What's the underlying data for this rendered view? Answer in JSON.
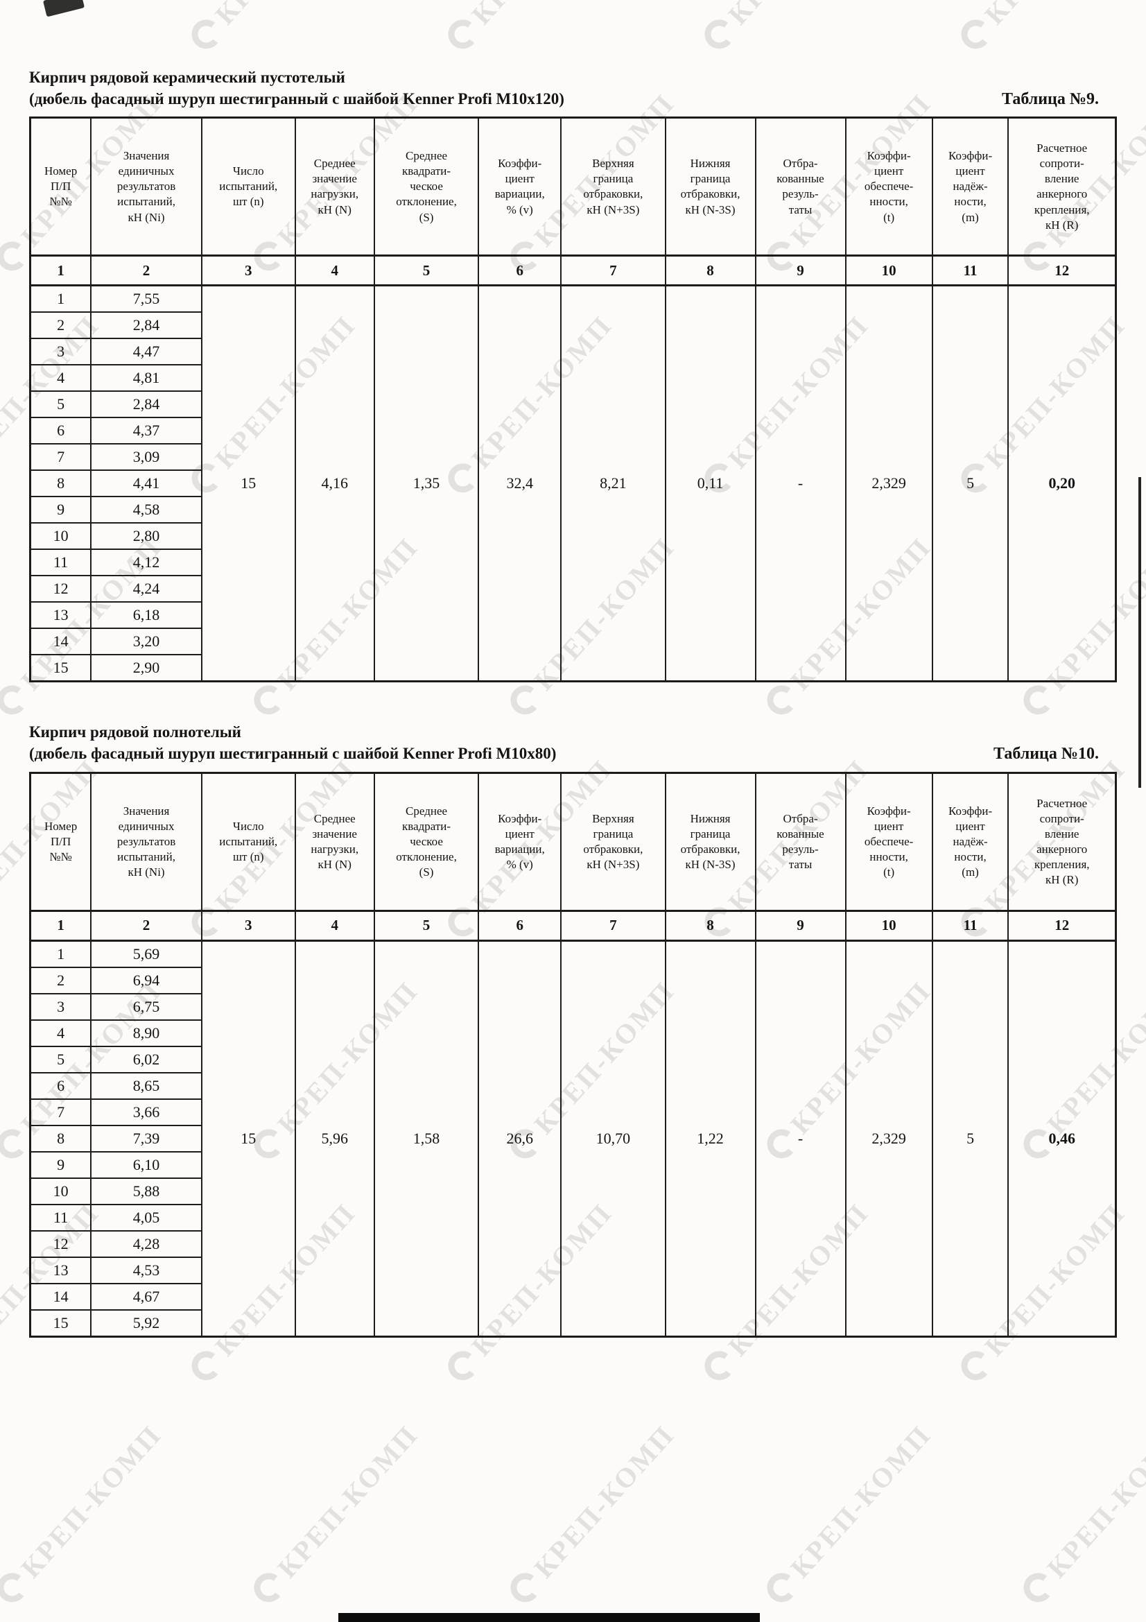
{
  "page": {
    "watermark_text": "КРЕП-КОМП"
  },
  "columns": {
    "headers": [
      "Номер\nП/П\n№№",
      "Значения\nединичных\nрезультатов\nиспытаний,\nкН (Ni)",
      "Число\nиспытаний,\nшт (n)",
      "Среднее\nзначение\nнагрузки,\nкН (N)",
      "Среднее\nквадрати-\nческое\nотклонение,\n(S)",
      "Коэффи-\nциент\nвариации,\n% (v)",
      "Верхняя\nграница\nотбраковки,\nкН (N+3S)",
      "Нижняя\nграница\nотбраковки,\nкН (N-3S)",
      "Отбра-\nкованные\nрезуль-\nтаты",
      "Коэффи-\nциент\nобеспече-\nнности,\n(t)",
      "Коэффи-\nциент\nнадёж-\nности,\n(m)",
      "Расчетное\nсопроти-\nвление\nанкерного\nкрепления,\nкН (R)"
    ],
    "numbers": [
      "1",
      "2",
      "3",
      "4",
      "5",
      "6",
      "7",
      "8",
      "9",
      "10",
      "11",
      "12"
    ]
  },
  "tables": [
    {
      "title": "Кирпич рядовой керамический пустотелый",
      "subtitle": "(дюбель фасадный шуруп шестигранный с шайбой Kenner Profi M10x120)",
      "label": "Таблица №9.",
      "row_numbers": [
        "1",
        "2",
        "3",
        "4",
        "5",
        "6",
        "7",
        "8",
        "9",
        "10",
        "11",
        "12",
        "13",
        "14",
        "15"
      ],
      "values": [
        "7,55",
        "2,84",
        "4,47",
        "4,81",
        "2,84",
        "4,37",
        "3,09",
        "4,41",
        "4,58",
        "2,80",
        "4,12",
        "4,24",
        "6,18",
        "3,20",
        "2,90"
      ],
      "merged": [
        "15",
        "4,16",
        "1,35",
        "32,4",
        "8,21",
        "0,11",
        "-",
        "2,329",
        "5",
        "0,20"
      ]
    },
    {
      "title": "Кирпич рядовой полнотелый",
      "subtitle": "(дюбель фасадный шуруп шестигранный с шайбой Kenner Profi M10x80)",
      "label": "Таблица №10.",
      "row_numbers": [
        "1",
        "2",
        "3",
        "4",
        "5",
        "6",
        "7",
        "8",
        "9",
        "10",
        "11",
        "12",
        "13",
        "14",
        "15"
      ],
      "values": [
        "5,69",
        "6,94",
        "6,75",
        "8,90",
        "6,02",
        "8,65",
        "3,66",
        "7,39",
        "6,10",
        "5,88",
        "4,05",
        "4,28",
        "4,53",
        "4,67",
        "5,92"
      ],
      "merged": [
        "15",
        "5,96",
        "1,58",
        "26,6",
        "10,70",
        "1,22",
        "-",
        "2,329",
        "5",
        "0,46"
      ]
    }
  ]
}
